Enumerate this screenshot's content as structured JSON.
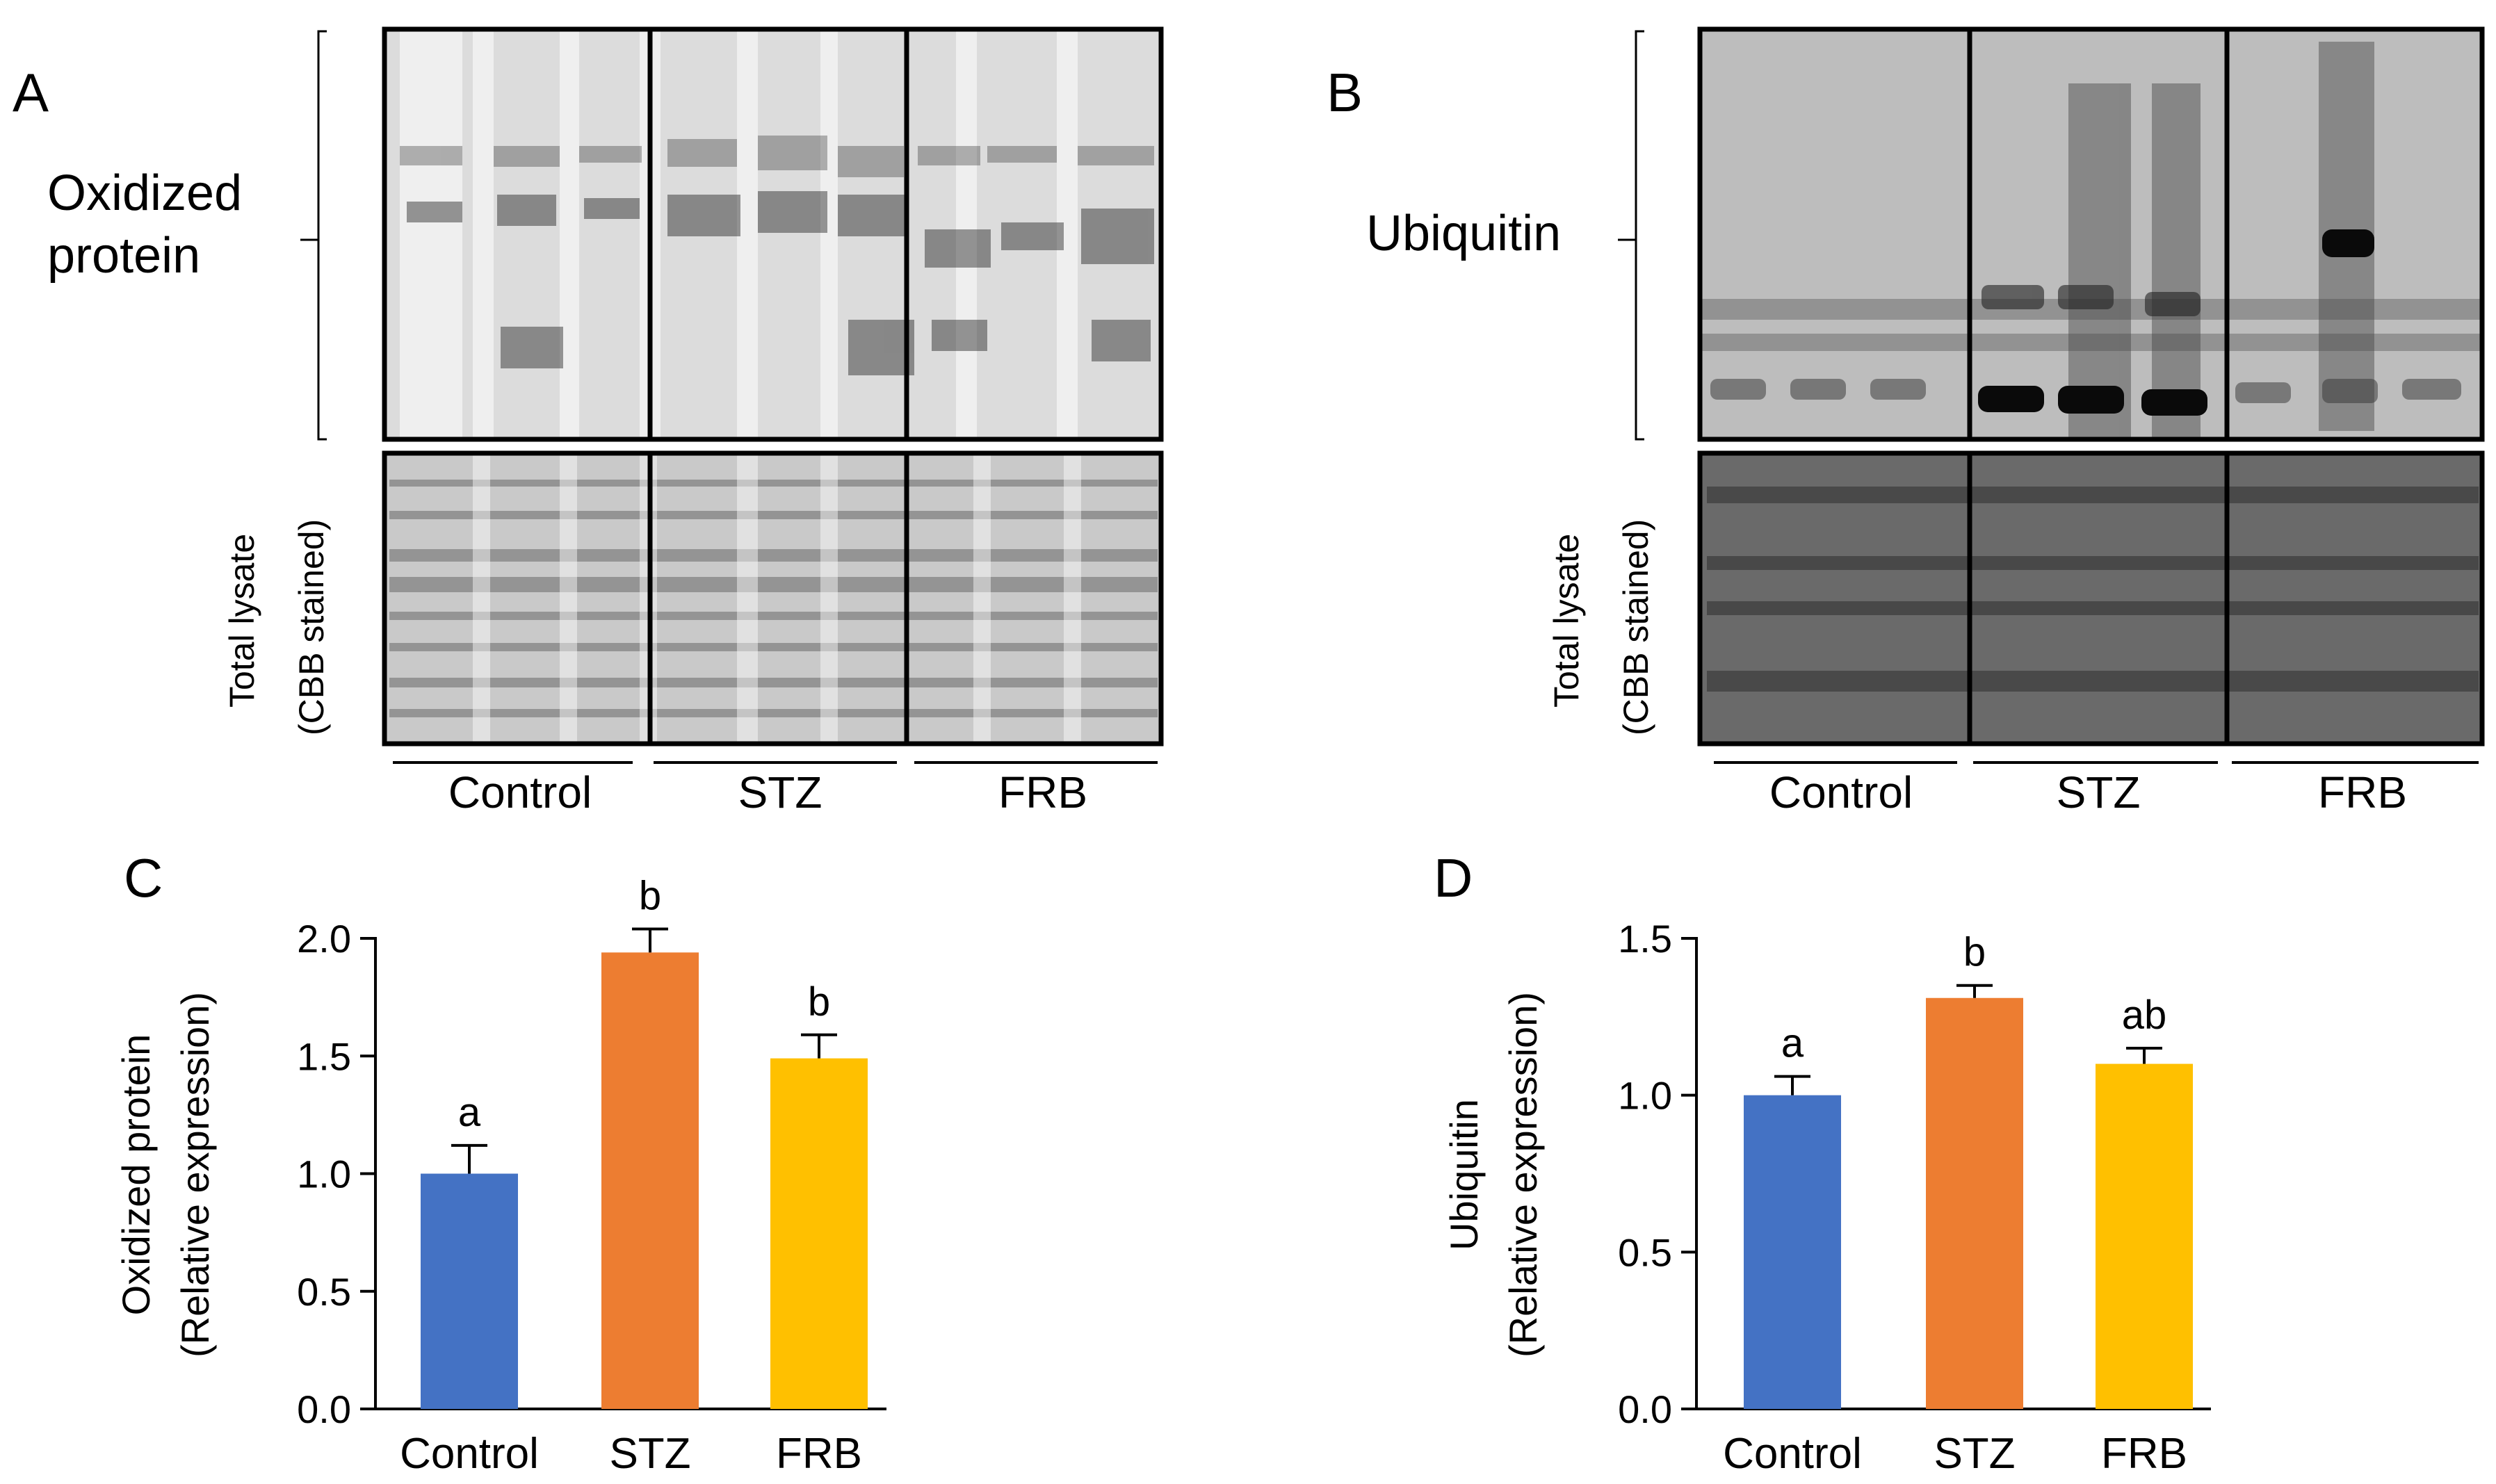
{
  "panels": {
    "A": {
      "letter": "A",
      "target_label": [
        "Oxidized",
        "protein"
      ],
      "loading_label": [
        "Total lysate",
        "(CBB stained)"
      ],
      "groups": [
        "Control",
        "STZ",
        "FRB"
      ]
    },
    "B": {
      "letter": "B",
      "target_label": [
        "Ubiquitin"
      ],
      "loading_label": [
        "Total lysate",
        "(CBB stained)"
      ],
      "groups": [
        "Control",
        "STZ",
        "FRB"
      ]
    },
    "C": {
      "letter": "C"
    },
    "D": {
      "letter": "D"
    }
  },
  "colors": {
    "control": "#4472c4",
    "stz": "#ed7d31",
    "frb": "#ffc000"
  },
  "chart_data": [
    {
      "type": "bar",
      "panel": "C",
      "categories": [
        "Control",
        "STZ",
        "FRB"
      ],
      "values": [
        1.0,
        1.94,
        1.49
      ],
      "errors": [
        0.12,
        0.1,
        0.1
      ],
      "significance": [
        "a",
        "b",
        "b"
      ],
      "ylabel": [
        "Oxidized protein",
        "(Relative expression)"
      ],
      "ylim": [
        0,
        2.0
      ],
      "yticks": [
        "0.0",
        "0.5",
        "1.0",
        "1.5",
        "2.0"
      ],
      "colors": [
        "#4472c4",
        "#ed7d31",
        "#ffc000"
      ],
      "grid": false
    },
    {
      "type": "bar",
      "panel": "D",
      "categories": [
        "Control",
        "STZ",
        "FRB"
      ],
      "values": [
        1.0,
        1.31,
        1.1
      ],
      "errors": [
        0.06,
        0.04,
        0.05
      ],
      "significance": [
        "a",
        "b",
        "ab"
      ],
      "ylabel": [
        "Ubiquitin",
        "(Relative expression)"
      ],
      "ylim": [
        0,
        1.5
      ],
      "yticks": [
        "0.0",
        "0.5",
        "1.0",
        "1.5"
      ],
      "colors": [
        "#4472c4",
        "#ed7d31",
        "#ffc000"
      ],
      "grid": false
    }
  ]
}
